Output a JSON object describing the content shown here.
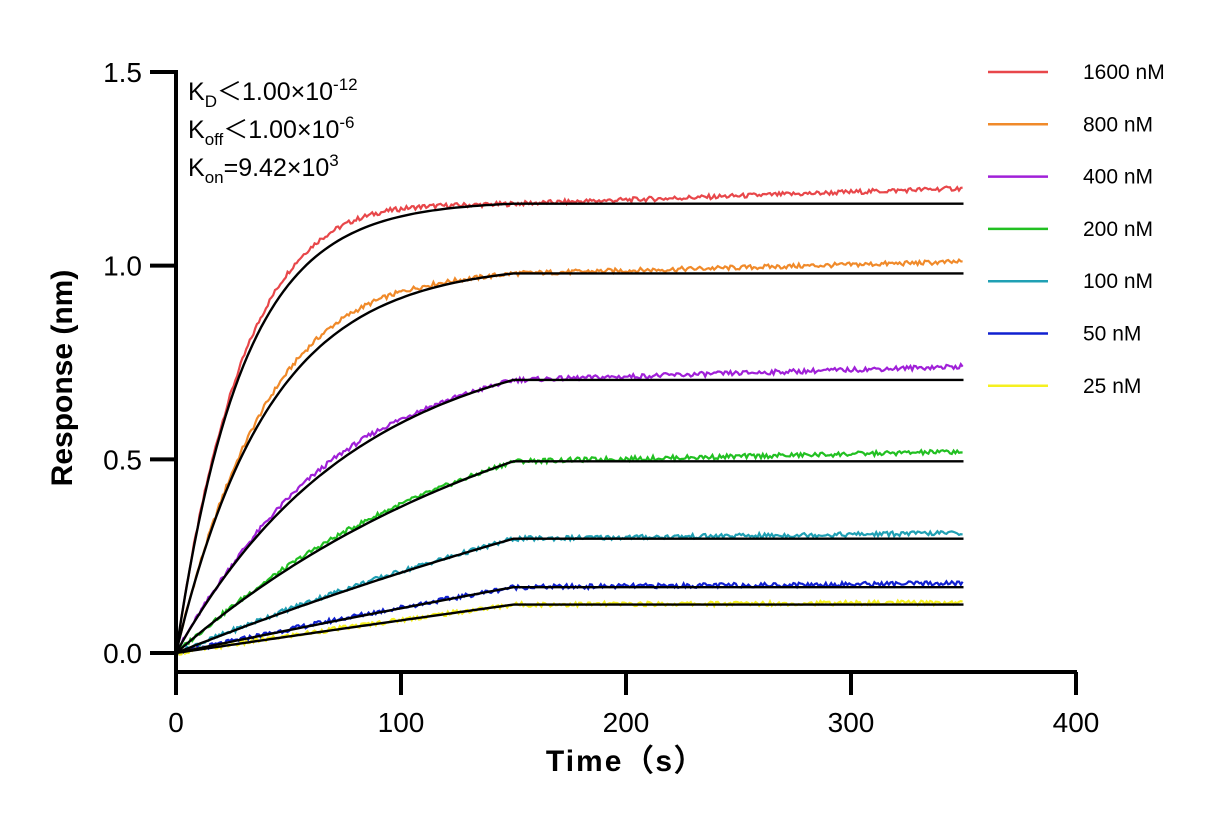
{
  "chart_data": {
    "type": "line",
    "xlabel": "Time（s）",
    "ylabel": "Response (nm)",
    "xlim": [
      0,
      400
    ],
    "ylim": [
      0,
      1.5
    ],
    "xticks": [
      "0",
      "100",
      "200",
      "300",
      "400"
    ],
    "yticks": [
      "0.0",
      "0.5",
      "1.0",
      "1.5"
    ],
    "grid": false,
    "legend_position": "top-right",
    "association_end_s": 150,
    "dissociation_end_s": 350,
    "annotations": [
      {
        "main": "K",
        "sub": "D",
        "rest": "＜1.00×10",
        "sup": "-12"
      },
      {
        "main": "K",
        "sub": "off",
        "rest": "＜1.00×10",
        "sup": "-6"
      },
      {
        "main": "K",
        "sub": "on",
        "rest": "=9.42×10",
        "sup": "3"
      }
    ],
    "series": [
      {
        "name": "1600 nM",
        "color": "#e8474a",
        "plateau": 1.16,
        "end_value": 1.2
      },
      {
        "name": "800 nM",
        "color": "#f08a2a",
        "plateau": 0.98,
        "end_value": 1.01
      },
      {
        "name": "400 nM",
        "color": "#a020d8",
        "plateau": 0.705,
        "end_value": 0.74
      },
      {
        "name": "200 nM",
        "color": "#22c022",
        "plateau": 0.495,
        "end_value": 0.52
      },
      {
        "name": "100 nM",
        "color": "#20a0b4",
        "plateau": 0.295,
        "end_value": 0.31
      },
      {
        "name": "50 nM",
        "color": "#1020d0",
        "plateau": 0.17,
        "end_value": 0.18
      },
      {
        "name": "25 nM",
        "color": "#f5f020",
        "plateau": 0.125,
        "end_value": 0.13
      }
    ],
    "fit_color": "#000000"
  }
}
